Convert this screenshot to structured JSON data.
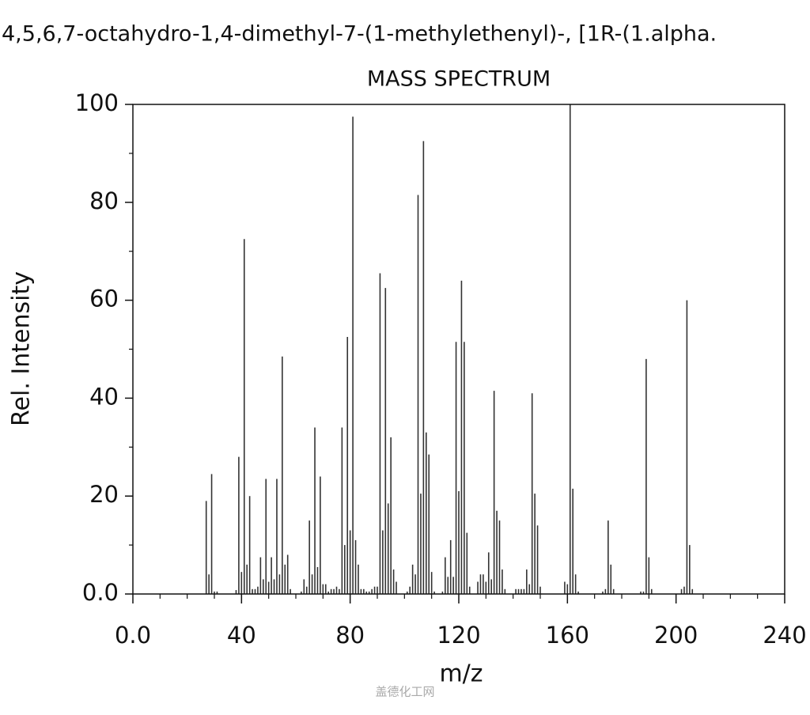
{
  "chart_data": {
    "type": "bar",
    "subtitle": "4,5,6,7-octahydro-1,4-dimethyl-7-(1-methylethenyl)-, [1R-(1.alpha.",
    "title": "MASS SPECTRUM",
    "x_label": "m/z",
    "y_label": "Rel. Intensity",
    "watermark": "盖德化工网",
    "color": "#333333",
    "x": [
      27,
      28,
      29,
      30,
      31,
      38,
      39,
      40,
      41,
      42,
      43,
      44,
      45,
      46,
      47,
      48,
      49,
      50,
      51,
      52,
      53,
      54,
      55,
      56,
      57,
      58,
      62,
      63,
      64,
      65,
      66,
      67,
      68,
      69,
      70,
      71,
      72,
      73,
      74,
      75,
      76,
      77,
      78,
      79,
      80,
      81,
      82,
      83,
      84,
      85,
      86,
      87,
      88,
      89,
      90,
      91,
      92,
      93,
      94,
      95,
      96,
      97,
      101,
      102,
      103,
      104,
      105,
      106,
      107,
      108,
      109,
      110,
      111,
      114,
      115,
      116,
      117,
      118,
      119,
      120,
      121,
      122,
      123,
      124,
      127,
      128,
      129,
      130,
      131,
      132,
      133,
      134,
      135,
      136,
      137,
      141,
      142,
      143,
      144,
      145,
      146,
      147,
      148,
      149,
      150,
      159,
      160,
      161,
      162,
      163,
      164,
      173,
      174,
      175,
      176,
      177,
      187,
      188,
      189,
      190,
      191,
      202,
      203,
      204,
      205,
      206
    ],
    "values": [
      19,
      4,
      24.5,
      0.5,
      0.5,
      0.8,
      28,
      4.5,
      72.5,
      6,
      20,
      1,
      1,
      1.5,
      7.5,
      3,
      23.5,
      2.5,
      7.5,
      3,
      23.5,
      4,
      48.5,
      6,
      8,
      1,
      0.5,
      3,
      1.5,
      15,
      4,
      34,
      5.5,
      24,
      2,
      2,
      0.5,
      1,
      1,
      1.5,
      1,
      34,
      10,
      52.5,
      13,
      97.5,
      11,
      6,
      1,
      1,
      0.5,
      0.5,
      1,
      1.5,
      1.5,
      65.5,
      13,
      62.5,
      18.5,
      32,
      5,
      2.5,
      0.5,
      1.5,
      6,
      4,
      81.5,
      20.5,
      92.5,
      33,
      28.5,
      4.5,
      0.5,
      0.5,
      7.5,
      3.5,
      11,
      3.5,
      51.5,
      21,
      64,
      51.5,
      12.5,
      1.5,
      2.5,
      4,
      4,
      2.5,
      8.5,
      3,
      41.5,
      17,
      15,
      5,
      1,
      1,
      1,
      1,
      1,
      5,
      2,
      41,
      20.5,
      14,
      1.5,
      2.5,
      2,
      100,
      21.5,
      4,
      0.5,
      0.5,
      1,
      15,
      6,
      1,
      0.5,
      0.5,
      48,
      7.5,
      1,
      1,
      1.5,
      60,
      10,
      1
    ],
    "xlim": [
      0,
      240
    ],
    "ylim": [
      0,
      100
    ],
    "xticks": [
      {
        "value": 0,
        "label": "0.0"
      },
      40,
      80,
      120,
      160,
      200,
      240
    ],
    "yticks": [
      {
        "value": 0,
        "label": "0.0"
      },
      20,
      40,
      60,
      80,
      100
    ],
    "xminorticks": [
      10,
      20,
      30,
      50,
      60,
      70,
      90,
      100,
      110,
      130,
      140,
      150,
      170,
      180,
      190,
      210,
      220,
      230
    ],
    "yminorticks": [
      10,
      30,
      50,
      70,
      90
    ]
  }
}
